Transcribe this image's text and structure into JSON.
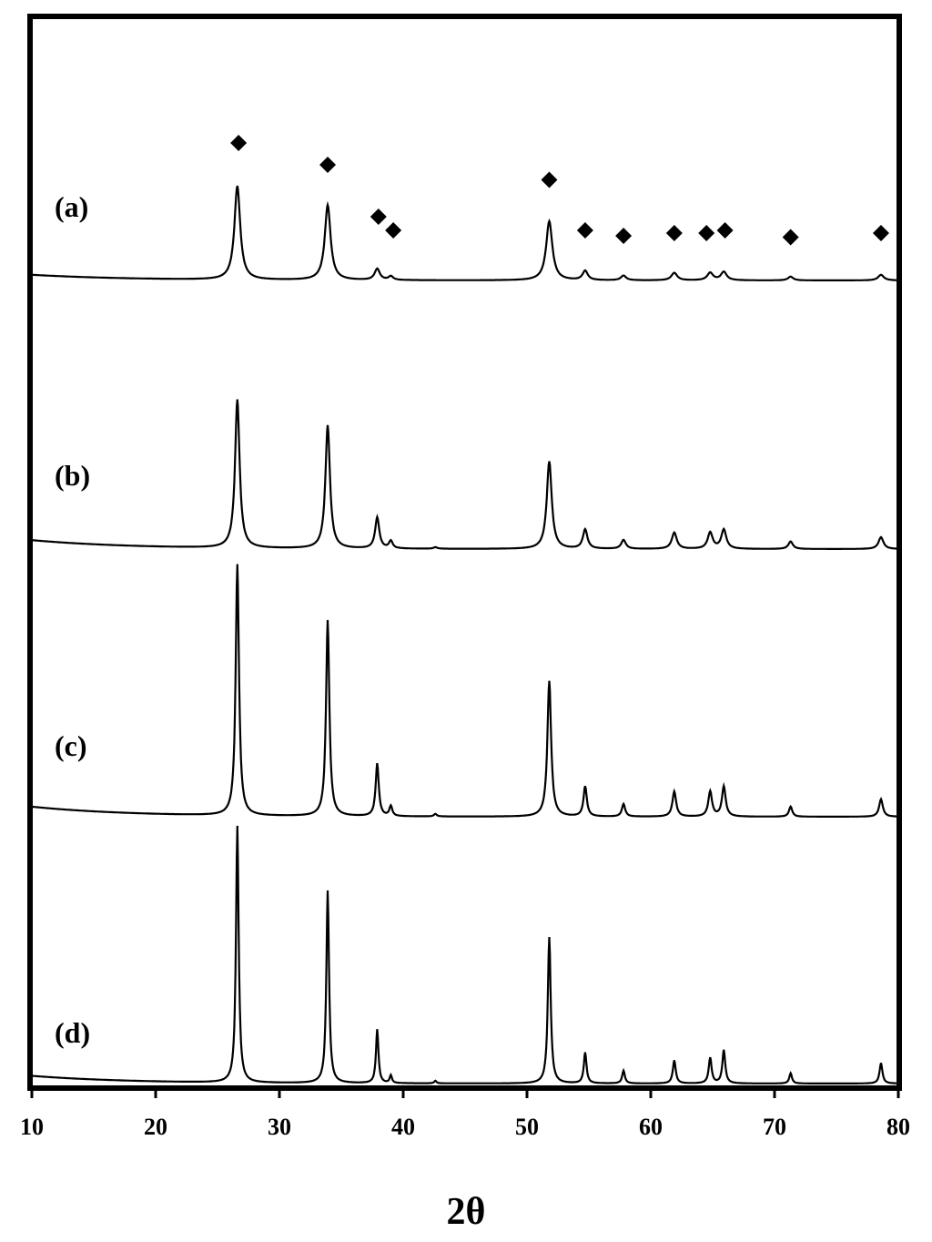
{
  "chart_data": {
    "type": "line",
    "title": "",
    "xlabel": "2θ",
    "ylabel": "",
    "xlim": [
      10,
      80
    ],
    "xticks": [
      "10",
      "20",
      "30",
      "40",
      "50",
      "60",
      "70",
      "80"
    ],
    "grid": false,
    "legend": "none",
    "marker_symbol": "◆",
    "marker_color": "#000000",
    "line_color": "#000000",
    "markers": [
      {
        "x": 26.7,
        "level": 0.94
      },
      {
        "x": 33.9,
        "level": 0.78
      },
      {
        "x": 38.0,
        "level": 0.4
      },
      {
        "x": 39.2,
        "level": 0.3
      },
      {
        "x": 51.8,
        "level": 0.67
      },
      {
        "x": 54.7,
        "level": 0.3
      },
      {
        "x": 57.8,
        "level": 0.26
      },
      {
        "x": 61.9,
        "level": 0.28
      },
      {
        "x": 64.5,
        "level": 0.28
      },
      {
        "x": 66.0,
        "level": 0.3
      },
      {
        "x": 71.3,
        "level": 0.25
      },
      {
        "x": 78.6,
        "level": 0.28
      }
    ],
    "series": [
      {
        "name": "(a)",
        "baseline_start": 0.06,
        "peaks": [
          {
            "x": 26.6,
            "h": 1.0,
            "w": 0.28
          },
          {
            "x": 33.9,
            "h": 0.8,
            "w": 0.28
          },
          {
            "x": 37.9,
            "h": 0.12,
            "w": 0.25
          },
          {
            "x": 39.0,
            "h": 0.04,
            "w": 0.22
          },
          {
            "x": 51.8,
            "h": 0.63,
            "w": 0.3
          },
          {
            "x": 54.7,
            "h": 0.1,
            "w": 0.25
          },
          {
            "x": 57.8,
            "h": 0.05,
            "w": 0.25
          },
          {
            "x": 61.9,
            "h": 0.08,
            "w": 0.28
          },
          {
            "x": 64.8,
            "h": 0.08,
            "w": 0.28
          },
          {
            "x": 65.9,
            "h": 0.09,
            "w": 0.28
          },
          {
            "x": 71.3,
            "h": 0.04,
            "w": 0.25
          },
          {
            "x": 78.6,
            "h": 0.06,
            "w": 0.28
          }
        ]
      },
      {
        "name": "(b)",
        "baseline_start": 0.06,
        "peaks": [
          {
            "x": 26.6,
            "h": 1.0,
            "w": 0.22
          },
          {
            "x": 33.9,
            "h": 0.83,
            "w": 0.22
          },
          {
            "x": 37.9,
            "h": 0.21,
            "w": 0.2
          },
          {
            "x": 39.0,
            "h": 0.05,
            "w": 0.18
          },
          {
            "x": 42.6,
            "h": 0.01,
            "w": 0.18
          },
          {
            "x": 51.8,
            "h": 0.59,
            "w": 0.24
          },
          {
            "x": 54.7,
            "h": 0.13,
            "w": 0.22
          },
          {
            "x": 57.8,
            "h": 0.06,
            "w": 0.22
          },
          {
            "x": 61.9,
            "h": 0.11,
            "w": 0.24
          },
          {
            "x": 64.8,
            "h": 0.11,
            "w": 0.24
          },
          {
            "x": 65.9,
            "h": 0.13,
            "w": 0.24
          },
          {
            "x": 71.3,
            "h": 0.05,
            "w": 0.22
          },
          {
            "x": 78.6,
            "h": 0.08,
            "w": 0.24
          }
        ]
      },
      {
        "name": "(c)",
        "baseline_start": 0.04,
        "peaks": [
          {
            "x": 26.6,
            "h": 1.0,
            "w": 0.16
          },
          {
            "x": 33.9,
            "h": 0.78,
            "w": 0.16
          },
          {
            "x": 37.9,
            "h": 0.21,
            "w": 0.15
          },
          {
            "x": 39.0,
            "h": 0.04,
            "w": 0.14
          },
          {
            "x": 42.6,
            "h": 0.01,
            "w": 0.14
          },
          {
            "x": 51.8,
            "h": 0.54,
            "w": 0.18
          },
          {
            "x": 54.7,
            "h": 0.12,
            "w": 0.16
          },
          {
            "x": 57.8,
            "h": 0.05,
            "w": 0.16
          },
          {
            "x": 61.9,
            "h": 0.1,
            "w": 0.18
          },
          {
            "x": 64.8,
            "h": 0.1,
            "w": 0.18
          },
          {
            "x": 65.9,
            "h": 0.12,
            "w": 0.18
          },
          {
            "x": 71.3,
            "h": 0.04,
            "w": 0.16
          },
          {
            "x": 78.6,
            "h": 0.07,
            "w": 0.18
          }
        ]
      },
      {
        "name": "(d)",
        "baseline_start": 0.03,
        "peaks": [
          {
            "x": 26.6,
            "h": 1.0,
            "w": 0.13
          },
          {
            "x": 33.9,
            "h": 0.75,
            "w": 0.13
          },
          {
            "x": 37.9,
            "h": 0.21,
            "w": 0.12
          },
          {
            "x": 39.0,
            "h": 0.03,
            "w": 0.11
          },
          {
            "x": 42.6,
            "h": 0.01,
            "w": 0.11
          },
          {
            "x": 51.8,
            "h": 0.57,
            "w": 0.14
          },
          {
            "x": 54.7,
            "h": 0.12,
            "w": 0.13
          },
          {
            "x": 57.8,
            "h": 0.05,
            "w": 0.13
          },
          {
            "x": 61.9,
            "h": 0.09,
            "w": 0.14
          },
          {
            "x": 64.8,
            "h": 0.1,
            "w": 0.14
          },
          {
            "x": 65.9,
            "h": 0.13,
            "w": 0.14
          },
          {
            "x": 71.3,
            "h": 0.04,
            "w": 0.13
          },
          {
            "x": 78.6,
            "h": 0.08,
            "w": 0.14
          }
        ]
      }
    ]
  }
}
